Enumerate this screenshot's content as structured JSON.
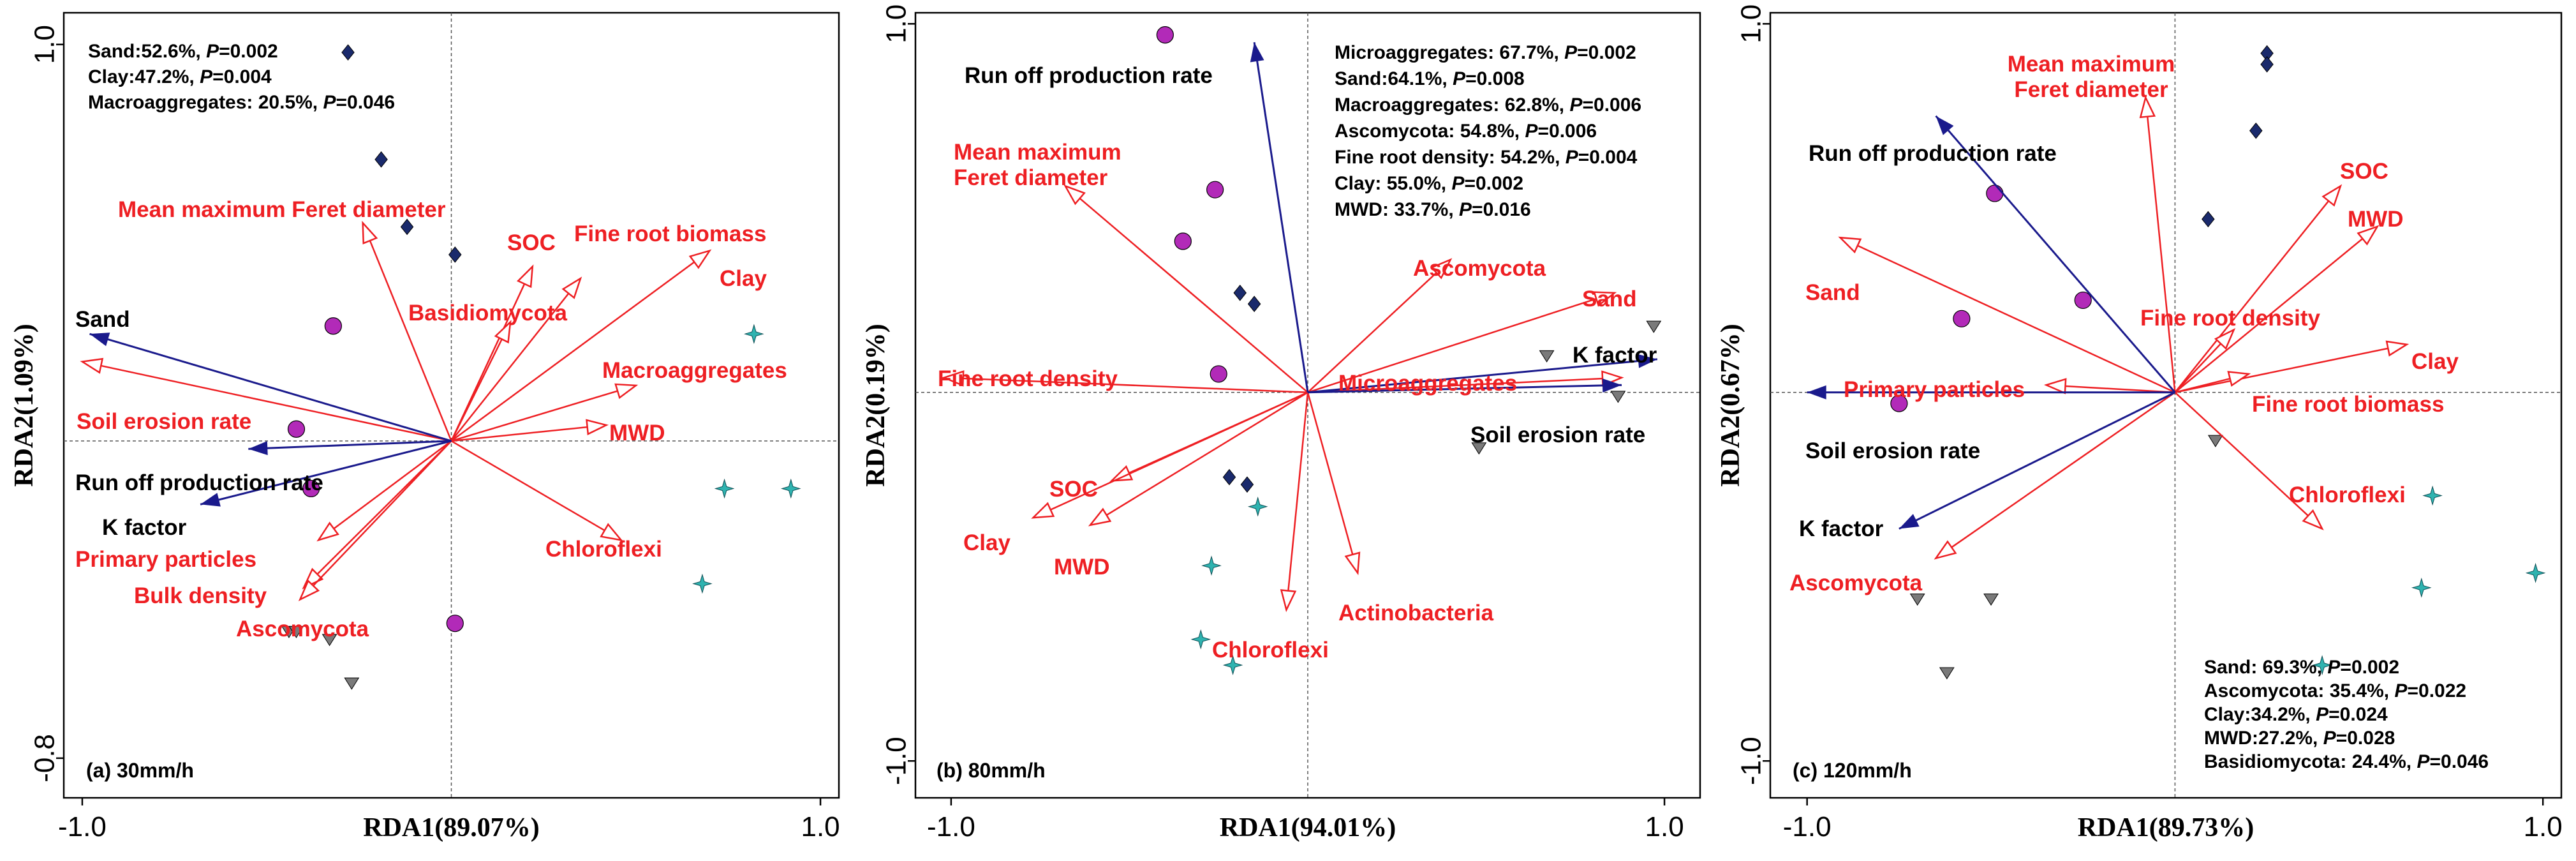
{
  "chart_data": [
    {
      "type": "scatter",
      "chart_kind": "RDA triplot",
      "panel_label": "(a)  30mm/h",
      "xlabel": "RDA1(89.07%)",
      "ylabel": "RDA2(1.09%)",
      "xlim": [
        -1.05,
        1.05
      ],
      "ylim": [
        -0.9,
        1.08
      ],
      "x_ticks": [
        {
          "v": -1.0,
          "t": "-1.0"
        },
        {
          "v": 1.0,
          "t": "1.0"
        }
      ],
      "y_ticks": [
        {
          "v": 1.0,
          "t": "1.0"
        },
        {
          "v": -0.8,
          "t": "-0.8"
        }
      ],
      "stats_position": "top-left",
      "stats": [
        {
          "label": "Sand:52.6%, ",
          "p": "0.002"
        },
        {
          "label": "Clay:47.2%, ",
          "p": "0.004"
        },
        {
          "label": "Macroaggregates: 20.5%, ",
          "p": "0.046"
        }
      ],
      "vectors_red": [
        {
          "name": "Mean maximum Feret diameter",
          "x": -0.24,
          "y": 0.55
        },
        {
          "name": "SOC",
          "x": 0.22,
          "y": 0.44
        },
        {
          "name": "Fine root biomass",
          "x": 0.35,
          "y": 0.41
        },
        {
          "name": "Basidiomycota",
          "x": 0.16,
          "y": 0.3
        },
        {
          "name": "Clay",
          "x": 0.7,
          "y": 0.48
        },
        {
          "name": "Macroaggregates",
          "x": 0.5,
          "y": 0.14
        },
        {
          "name": "MWD",
          "x": 0.42,
          "y": 0.04
        },
        {
          "name": "Chloroflexi",
          "x": 0.46,
          "y": -0.25
        },
        {
          "name": "Soil erosion rate",
          "x": -1.0,
          "y": 0.2
        },
        {
          "name": "Primary particles",
          "x": -0.36,
          "y": -0.25
        },
        {
          "name": "Bulk density",
          "x": -0.4,
          "y": -0.37
        },
        {
          "name": "Ascomycota",
          "x": -0.41,
          "y": -0.4
        }
      ],
      "vectors_blue": [
        {
          "name": "Sand",
          "x": -0.98,
          "y": 0.27
        },
        {
          "name": "Run off production rate",
          "x": -0.55,
          "y": -0.02
        },
        {
          "name": "K factor",
          "x": -0.68,
          "y": -0.16
        }
      ],
      "samples": [
        {
          "group": "diamond",
          "x": -0.28,
          "y": 0.98
        },
        {
          "group": "diamond",
          "x": -0.19,
          "y": 0.71
        },
        {
          "group": "diamond",
          "x": -0.12,
          "y": 0.54
        },
        {
          "group": "diamond",
          "x": 0.01,
          "y": 0.47
        },
        {
          "group": "circle",
          "x": -0.32,
          "y": 0.29
        },
        {
          "group": "circle",
          "x": -0.42,
          "y": 0.03
        },
        {
          "group": "circle",
          "x": -0.38,
          "y": -0.12
        },
        {
          "group": "circle",
          "x": 0.01,
          "y": -0.46
        },
        {
          "group": "star",
          "x": 0.82,
          "y": 0.27
        },
        {
          "group": "star",
          "x": 0.74,
          "y": -0.12
        },
        {
          "group": "star",
          "x": 0.92,
          "y": -0.12
        },
        {
          "group": "star",
          "x": 0.68,
          "y": -0.36
        },
        {
          "group": "triangle",
          "x": -0.44,
          "y": -0.48
        },
        {
          "group": "triangle",
          "x": -0.42,
          "y": -0.48
        },
        {
          "group": "triangle",
          "x": -0.33,
          "y": -0.5
        },
        {
          "group": "triangle",
          "x": -0.27,
          "y": -0.61
        }
      ]
    },
    {
      "type": "scatter",
      "chart_kind": "RDA triplot",
      "panel_label": "(b)  80mm/h",
      "xlabel": "RDA1(94.01%)",
      "ylabel": "RDA2(0.19%)",
      "xlim": [
        -1.1,
        1.1
      ],
      "ylim": [
        -1.1,
        1.03
      ],
      "x_ticks": [
        {
          "v": -1.0,
          "t": "-1.0"
        },
        {
          "v": 1.0,
          "t": "1.0"
        }
      ],
      "y_ticks": [
        {
          "v": 1.0,
          "t": "1.0"
        },
        {
          "v": -1.0,
          "t": "-1.0"
        }
      ],
      "stats_position": "top-right",
      "stats": [
        {
          "label": "Microaggregates: 67.7%, ",
          "p": "0.002"
        },
        {
          "label": "Sand:64.1%, ",
          "p": "0.008"
        },
        {
          "label": "Macroaggregates: 62.8%, ",
          "p": "0.006"
        },
        {
          "label": "Ascomycota: 54.8%, ",
          "p": "0.006"
        },
        {
          "label": "Fine root density: 54.2%, ",
          "p": "0.004"
        },
        {
          "label": "Clay: 55.0%, ",
          "p": "0.002"
        },
        {
          "label": "MWD: 33.7%, ",
          "p": "0.016"
        }
      ],
      "vectors_red": [
        {
          "name": "Mean maximum Feret diameter",
          "x": -0.68,
          "y": 0.56
        },
        {
          "name": "Ascomycota",
          "x": 0.4,
          "y": 0.36
        },
        {
          "name": "Sand",
          "x": 0.86,
          "y": 0.27
        },
        {
          "name": "Microaggregates",
          "x": 0.88,
          "y": 0.04
        },
        {
          "name": "Fine root density",
          "x": -1.02,
          "y": 0.04
        },
        {
          "name": "SOC",
          "x": -0.55,
          "y": -0.24
        },
        {
          "name": "Clay",
          "x": -0.77,
          "y": -0.34
        },
        {
          "name": "MWD",
          "x": -0.61,
          "y": -0.36
        },
        {
          "name": "Actinobacteria",
          "x": 0.14,
          "y": -0.49
        },
        {
          "name": "Chloroflexi",
          "x": -0.06,
          "y": -0.59
        }
      ],
      "vectors_blue": [
        {
          "name": "Run off production rate",
          "x": -0.15,
          "y": 0.95
        },
        {
          "name": "K factor",
          "x": 0.98,
          "y": 0.09
        },
        {
          "name": "Soil erosion rate",
          "x": 0.88,
          "y": 0.02
        }
      ],
      "samples": [
        {
          "group": "circle",
          "x": -0.4,
          "y": 0.97
        },
        {
          "group": "circle",
          "x": -0.26,
          "y": 0.55
        },
        {
          "group": "circle",
          "x": -0.35,
          "y": 0.41
        },
        {
          "group": "circle",
          "x": -0.25,
          "y": 0.05
        },
        {
          "group": "diamond",
          "x": -0.19,
          "y": 0.27
        },
        {
          "group": "diamond",
          "x": -0.15,
          "y": 0.24
        },
        {
          "group": "diamond",
          "x": -0.22,
          "y": -0.23
        },
        {
          "group": "diamond",
          "x": -0.17,
          "y": -0.25
        },
        {
          "group": "star",
          "x": -0.14,
          "y": -0.31
        },
        {
          "group": "star",
          "x": -0.27,
          "y": -0.47
        },
        {
          "group": "star",
          "x": -0.3,
          "y": -0.67
        },
        {
          "group": "star",
          "x": -0.21,
          "y": -0.74
        },
        {
          "group": "triangle",
          "x": 0.48,
          "y": -0.15
        },
        {
          "group": "triangle",
          "x": 0.67,
          "y": 0.1
        },
        {
          "group": "triangle",
          "x": 0.97,
          "y": 0.18
        },
        {
          "group": "triangle",
          "x": 0.87,
          "y": -0.01
        }
      ]
    },
    {
      "type": "scatter",
      "chart_kind": "RDA triplot",
      "panel_label": "(c)  120mm/h",
      "xlabel": "RDA1(89.73%)",
      "ylabel": "RDA2(0.67%)",
      "xlim": [
        -1.1,
        1.05
      ],
      "ylim": [
        -1.1,
        1.03
      ],
      "x_ticks": [
        {
          "v": -1.0,
          "t": "-1.0"
        },
        {
          "v": 1.0,
          "t": "1.0"
        }
      ],
      "y_ticks": [
        {
          "v": 1.0,
          "t": "1.0"
        },
        {
          "v": -1.0,
          "t": "-1.0"
        }
      ],
      "stats_position": "bottom-right",
      "stats": [
        {
          "label": "Sand: 69.3%, ",
          "p": "0.002"
        },
        {
          "label": "Ascomycota: 35.4%, ",
          "p": "0.022"
        },
        {
          "label": "Clay:34.2%, ",
          "p": "0.024"
        },
        {
          "label": "MWD:27.2%, ",
          "p": "0.028"
        },
        {
          "label": "Basidiomycota: 24.4%, ",
          "p": "0.046"
        }
      ],
      "vectors_red": [
        {
          "name": "Mean maximum Feret diameter",
          "x": -0.08,
          "y": 0.8
        },
        {
          "name": "SOC",
          "x": 0.45,
          "y": 0.56
        },
        {
          "name": "MWD",
          "x": 0.55,
          "y": 0.45
        },
        {
          "name": "Sand",
          "x": -0.91,
          "y": 0.42
        },
        {
          "name": "Fine root density",
          "x": 0.16,
          "y": 0.17
        },
        {
          "name": "Clay",
          "x": 0.63,
          "y": 0.13
        },
        {
          "name": "Fine root biomass",
          "x": 0.2,
          "y": 0.05
        },
        {
          "name": "Primary particles",
          "x": -0.35,
          "y": 0.02
        },
        {
          "name": "Chloroflexi",
          "x": 0.4,
          "y": -0.37
        },
        {
          "name": "Ascomycota",
          "x": -0.65,
          "y": -0.45
        }
      ],
      "vectors_blue": [
        {
          "name": "Run off production rate",
          "x": -0.65,
          "y": 0.75
        },
        {
          "name": "Soil erosion rate",
          "x": -1.0,
          "y": 0.0
        },
        {
          "name": "K factor",
          "x": -0.75,
          "y": -0.37
        }
      ],
      "samples": [
        {
          "group": "diamond",
          "x": 0.25,
          "y": 0.92
        },
        {
          "group": "diamond",
          "x": 0.25,
          "y": 0.89
        },
        {
          "group": "diamond",
          "x": 0.22,
          "y": 0.71
        },
        {
          "group": "diamond",
          "x": 0.09,
          "y": 0.47
        },
        {
          "group": "circle",
          "x": -0.49,
          "y": 0.54
        },
        {
          "group": "circle",
          "x": -0.25,
          "y": 0.25
        },
        {
          "group": "circle",
          "x": -0.58,
          "y": 0.2
        },
        {
          "group": "circle",
          "x": -0.75,
          "y": -0.03
        },
        {
          "group": "star",
          "x": 0.7,
          "y": -0.28
        },
        {
          "group": "star",
          "x": 0.67,
          "y": -0.53
        },
        {
          "group": "star",
          "x": 0.98,
          "y": -0.49
        },
        {
          "group": "star",
          "x": 0.4,
          "y": -0.74
        },
        {
          "group": "triangle",
          "x": 0.11,
          "y": -0.13
        },
        {
          "group": "triangle",
          "x": -0.7,
          "y": -0.56
        },
        {
          "group": "triangle",
          "x": -0.5,
          "y": -0.56
        },
        {
          "group": "triangle",
          "x": -0.62,
          "y": -0.76
        }
      ]
    }
  ],
  "colors": {
    "red_vector": "#ee1f23",
    "blue_vector": "#1a1a8c",
    "diamond": "#1a2a6c",
    "circle": "#b22ab8",
    "star": "#2fb3b0",
    "triangle": "#7a7a7a"
  }
}
